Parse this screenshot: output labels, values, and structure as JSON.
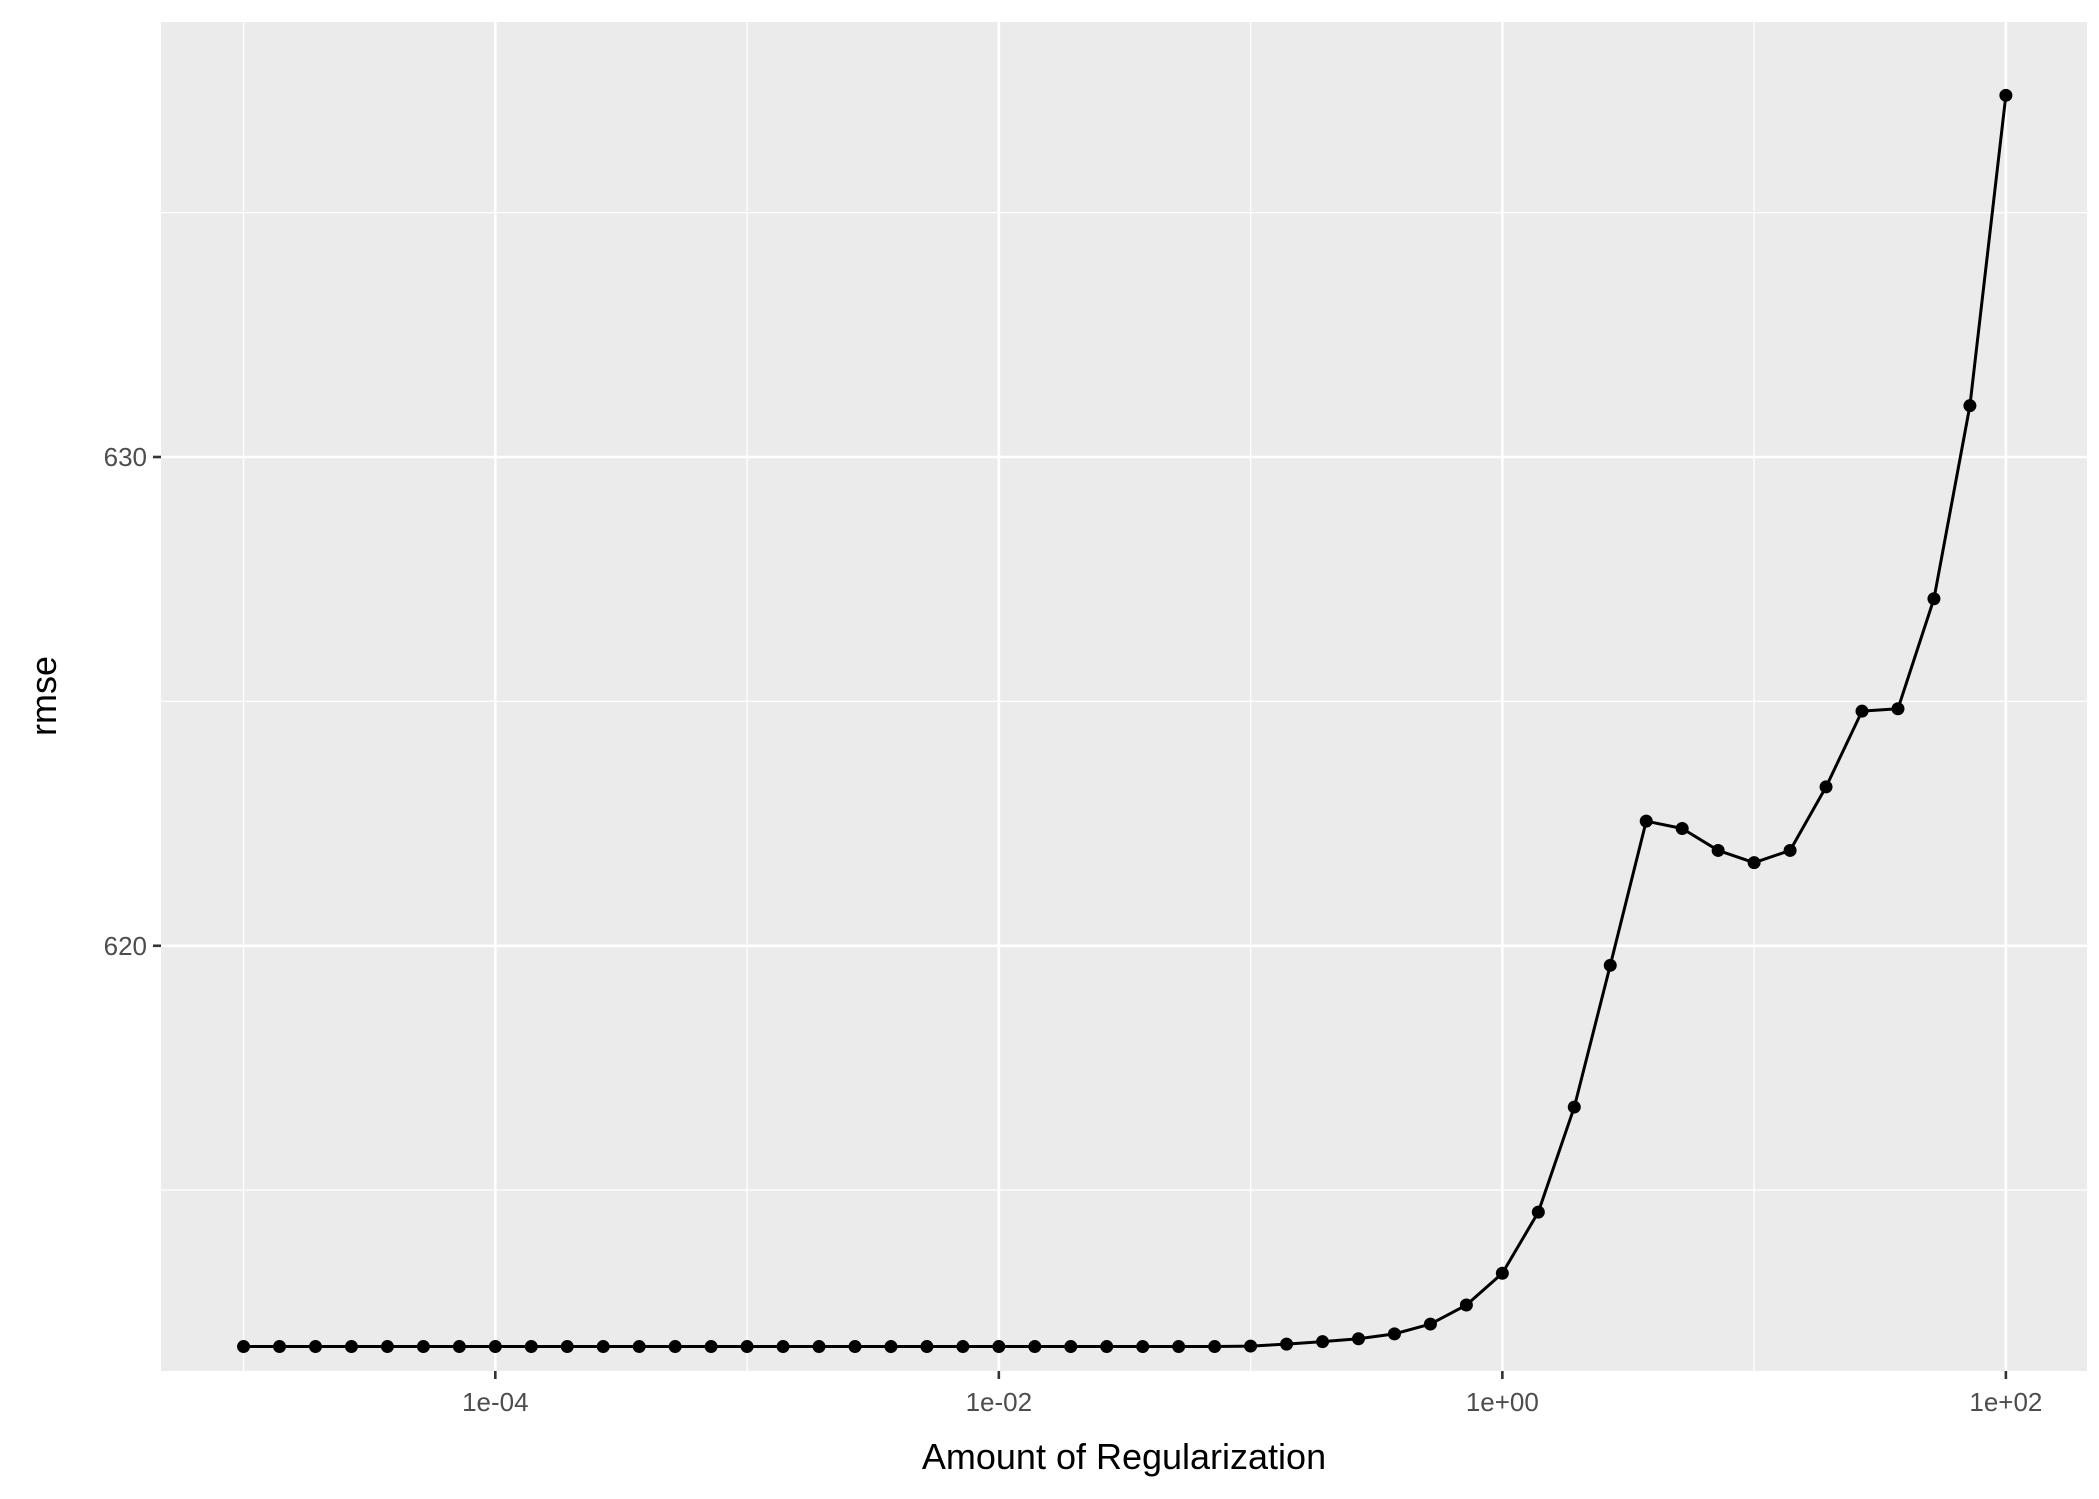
{
  "chart_data": {
    "type": "line",
    "xlabel": "Amount of Regularization",
    "ylabel": "rmse",
    "x_scale": "log10",
    "x_ticks": [
      "1e-04",
      "1e-02",
      "1e+00",
      "1e+02"
    ],
    "x_tick_values": [
      0.0001,
      0.01,
      1,
      100
    ],
    "y_ticks": [
      "620",
      "630"
    ],
    "y_tick_values": [
      620,
      630
    ],
    "xlim": [
      4.7e-06,
      210
    ],
    "ylim": [
      611.3,
      638.9
    ],
    "grid": true,
    "legend": "none",
    "colors": {
      "panel": "#ebebeb",
      "grid": "#ffffff",
      "line": "#000000",
      "point": "#000000"
    },
    "series": [
      {
        "x": [
          1e-05,
          1.38949549437314e-05,
          1.93069772888325e-05,
          2.68269579527973e-05,
          3.72759372031494e-05,
          5.17947467923121e-05,
          7.19685673001152e-05,
          0.0001,
          0.000138949549437314,
          0.000193069772888325,
          0.000268269579527973,
          0.000372759372031494,
          0.000517947467923121,
          0.000719685673001152,
          0.001,
          0.00138949549437314,
          0.00193069772888325,
          0.00268269579527973,
          0.00372759372031494,
          0.00517947467923121,
          0.00719685673001152,
          0.01,
          0.0138949549437314,
          0.0193069772888325,
          0.0268269579527973,
          0.0372759372031494,
          0.0517947467923121,
          0.0719685673001152,
          0.1,
          0.138949549437314,
          0.193069772888325,
          0.268269579527973,
          0.372759372031494,
          0.517947467923121,
          0.719685673001152,
          1,
          1.38949549437314,
          1.93069772888325,
          2.68269579527973,
          3.72759372031494,
          5.17947467923121,
          7.19685673001152,
          10,
          13.8949549437314,
          19.3069772888325,
          26.8269579527973,
          37.2759372031494,
          51.7947467923121,
          71.9685673001152,
          100
        ],
        "y": [
          611.8,
          611.8,
          611.8,
          611.8,
          611.8,
          611.8,
          611.8,
          611.8,
          611.8,
          611.8,
          611.8,
          611.8,
          611.8,
          611.8,
          611.8,
          611.8,
          611.8,
          611.8,
          611.8,
          611.8,
          611.8,
          611.8,
          611.8,
          611.8,
          611.8,
          611.8,
          611.8,
          611.8,
          611.81,
          611.85,
          611.9,
          611.96,
          612.06,
          612.26,
          612.65,
          613.3,
          614.55,
          616.7,
          619.6,
          622.55,
          622.4,
          621.95,
          621.7,
          621.95,
          623.25,
          624.8,
          624.85,
          627.1,
          631.05,
          637.4
        ]
      }
    ]
  }
}
